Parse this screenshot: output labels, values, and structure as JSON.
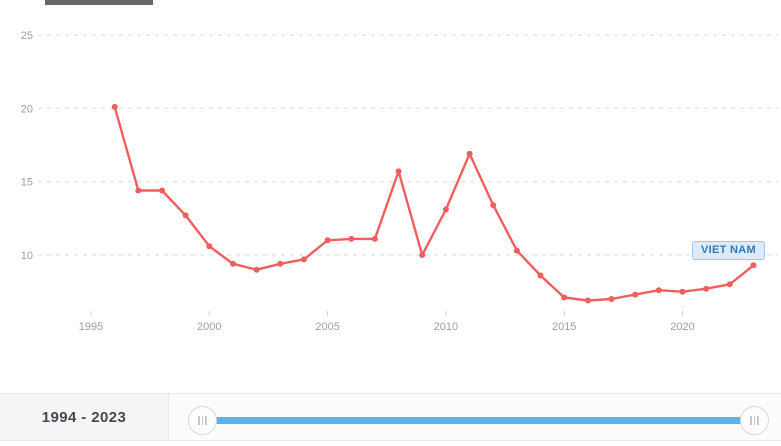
{
  "chart_data": {
    "type": "line",
    "title": "",
    "xlabel": "",
    "ylabel": "",
    "series": [
      {
        "name": "VIET NAM",
        "x": [
          1996,
          1997,
          1998,
          1999,
          2000,
          2001,
          2002,
          2003,
          2004,
          2005,
          2006,
          2007,
          2008,
          2009,
          2010,
          2011,
          2012,
          2013,
          2014,
          2015,
          2016,
          2017,
          2018,
          2019,
          2020,
          2021,
          2022,
          2023
        ],
        "values": [
          20.1,
          14.4,
          14.4,
          12.7,
          10.6,
          9.4,
          9.0,
          9.4,
          9.7,
          11.0,
          11.1,
          11.1,
          15.7,
          10.0,
          13.1,
          16.9,
          13.4,
          10.3,
          8.6,
          7.1,
          6.9,
          7.0,
          7.3,
          7.6,
          7.5,
          7.7,
          8.0,
          9.3
        ]
      }
    ],
    "x_ticks": [
      1995,
      2000,
      2005,
      2010,
      2015,
      2020
    ],
    "y_ticks": [
      10,
      15,
      20,
      25
    ],
    "xlim": [
      1994,
      2024
    ],
    "ylim": [
      6,
      26
    ],
    "grid": "horizontal-dashed",
    "legend": "series-badge-right",
    "line_color": "#f15e5e",
    "marker": "circle"
  },
  "colors": {
    "line": "#f15e5e",
    "slider_track": "#5cb3e8",
    "badge_background": "#dcebf7",
    "badge_border": "#a6c5e0",
    "badge_text": "#3878b0",
    "toolbar_fragment": "#63686d"
  },
  "range_slider": {
    "label": "1994 - 2023"
  }
}
